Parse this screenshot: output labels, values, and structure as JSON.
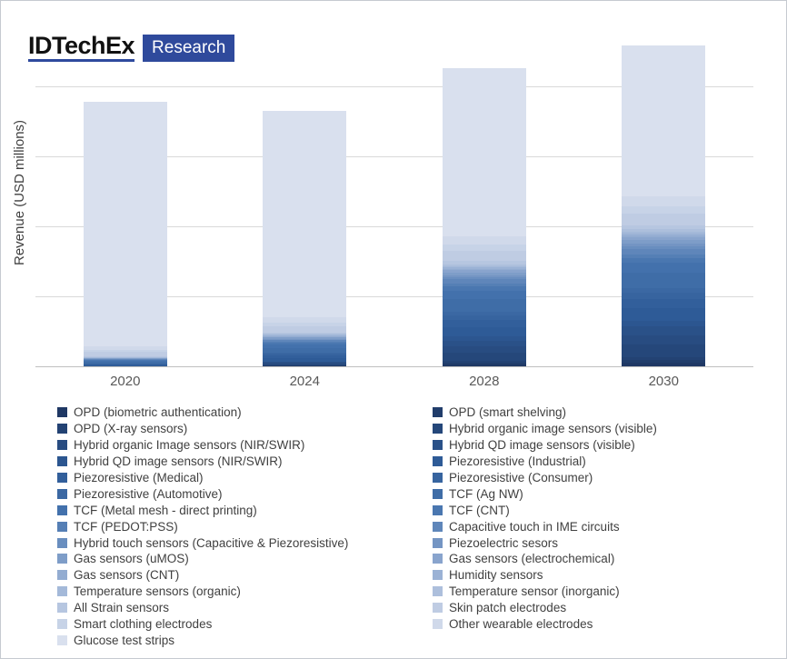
{
  "brand": {
    "name": "IDTechEx",
    "research_label": "Research",
    "accent": "#2f4a9c"
  },
  "colors": {
    "logo_underline": "#2e4a9e",
    "research_badge_bg": "#2f4a9c",
    "gridline": "#d9d9d9",
    "axis_line": "#bfbfbf",
    "axis_text": "#595959",
    "legend_text": "#404040"
  },
  "chart_data": {
    "type": "bar",
    "stacked": true,
    "title": "",
    "xlabel": "",
    "ylabel": "Revenue (USD millions)",
    "categories": [
      "2020",
      "2024",
      "2028",
      "2030"
    ],
    "ylim": [
      0,
      2500
    ],
    "gridline_step": 500,
    "grid": true,
    "y_tick_labels_hidden": true,
    "legend_position": "bottom",
    "legend_columns": 2,
    "color_stops": [
      "#1f3864",
      "#2e5b97",
      "#4674ae",
      "#8fa9d0",
      "#d9e0ee"
    ],
    "color_stop_positions": [
      0,
      0.25,
      0.45,
      0.7,
      1
    ],
    "series": [
      {
        "name": "OPD (biometric authentication)",
        "values": [
          0,
          2,
          15,
          25
        ]
      },
      {
        "name": "OPD (smart shelving)",
        "values": [
          0,
          2,
          12,
          20
        ]
      },
      {
        "name": "OPD (X-ray sensors)",
        "values": [
          0,
          2,
          10,
          18
        ]
      },
      {
        "name": "Hybrid organic image sensors (visible)",
        "values": [
          0,
          10,
          60,
          90
        ]
      },
      {
        "name": "Hybrid organic Image sensors (NIR/SWIR)",
        "values": [
          0,
          8,
          45,
          70
        ]
      },
      {
        "name": "Hybrid QD image sensors (visible)",
        "values": [
          0,
          6,
          40,
          60
        ]
      },
      {
        "name": "Hybrid QD image sensors (NIR/SWIR)",
        "values": [
          0,
          4,
          30,
          45
        ]
      },
      {
        "name": "Piezoresistive (Industrial)",
        "values": [
          8,
          25,
          70,
          90
        ]
      },
      {
        "name": "Piezoresistive (Medical)",
        "values": [
          6,
          18,
          50,
          65
        ]
      },
      {
        "name": "Piezoresistive (Consumer)",
        "values": [
          4,
          12,
          35,
          45
        ]
      },
      {
        "name": "Piezoresistive (Automotive)",
        "values": [
          2,
          8,
          25,
          30
        ]
      },
      {
        "name": "TCF (Ag NW)",
        "values": [
          12,
          35,
          90,
          110
        ]
      },
      {
        "name": "TCF (Metal mesh - direct printing)",
        "values": [
          8,
          25,
          60,
          70
        ]
      },
      {
        "name": "TCF (CNT)",
        "values": [
          5,
          12,
          30,
          35
        ]
      },
      {
        "name": "TCF (PEDOT:PSS)",
        "values": [
          4,
          8,
          20,
          25
        ]
      },
      {
        "name": "Capacitive touch in IME circuits",
        "values": [
          2,
          10,
          30,
          40
        ]
      },
      {
        "name": "Hybrid touch sensors (Capacitive & Piezoresistive)",
        "values": [
          1,
          5,
          15,
          20
        ]
      },
      {
        "name": "Piezoelectric sesors",
        "values": [
          2,
          6,
          15,
          20
        ]
      },
      {
        "name": "Gas sensors (uMOS)",
        "values": [
          2,
          8,
          20,
          28
        ]
      },
      {
        "name": "Gas sensors (electrochemical)",
        "values": [
          2,
          6,
          15,
          20
        ]
      },
      {
        "name": "Gas sensors (CNT)",
        "values": [
          1,
          3,
          8,
          10
        ]
      },
      {
        "name": "Humidity sensors",
        "values": [
          3,
          6,
          12,
          15
        ]
      },
      {
        "name": "Temperature sensors (organic)",
        "values": [
          2,
          5,
          10,
          13
        ]
      },
      {
        "name": "Temperature sensor (inorganic)",
        "values": [
          3,
          6,
          12,
          15
        ]
      },
      {
        "name": "All Strain sensors",
        "values": [
          5,
          12,
          25,
          30
        ]
      },
      {
        "name": "Skin patch electrodes",
        "values": [
          30,
          45,
          70,
          80
        ]
      },
      {
        "name": "Smart clothing electrodes",
        "values": [
          15,
          25,
          45,
          55
        ]
      },
      {
        "name": "Other wearable electrodes",
        "values": [
          25,
          36,
          60,
          70
        ]
      },
      {
        "name": "Glucose test strips",
        "values": [
          1750,
          1475,
          1200,
          1080
        ]
      }
    ]
  }
}
